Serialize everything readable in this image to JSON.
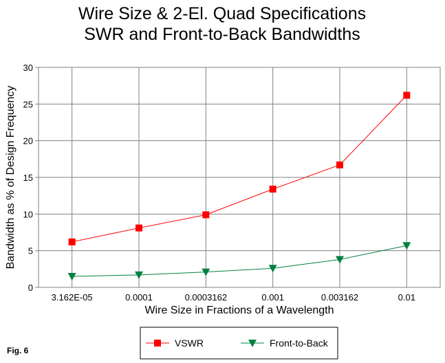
{
  "figure_label": "Fig. 6",
  "chart_data": {
    "type": "line",
    "title": [
      "Wire Size & 2-El. Quad Specifications",
      "SWR and Front-to-Back Bandwidths"
    ],
    "xlabel": "Wire Size in Fractions of a Wavelength",
    "ylabel": "Bandwidth as % of Design Frequency",
    "categories": [
      "3.162E-05",
      "0.0001",
      "0.0003162",
      "0.001",
      "0.003162",
      "0.01"
    ],
    "ylim": [
      0,
      30
    ],
    "yticks": [
      "0",
      "5",
      "10",
      "15",
      "20",
      "25",
      "30"
    ],
    "grid": true,
    "legend_position": "bottom",
    "series": [
      {
        "name": "VSWR",
        "values": [
          6.2,
          8.1,
          9.9,
          13.4,
          16.7,
          26.2
        ],
        "color": "#ff0000",
        "marker": "square"
      },
      {
        "name": "Front-to-Back",
        "values": [
          1.5,
          1.7,
          2.1,
          2.6,
          3.8,
          5.7
        ],
        "color": "#008040",
        "marker": "triangle-down"
      }
    ]
  }
}
